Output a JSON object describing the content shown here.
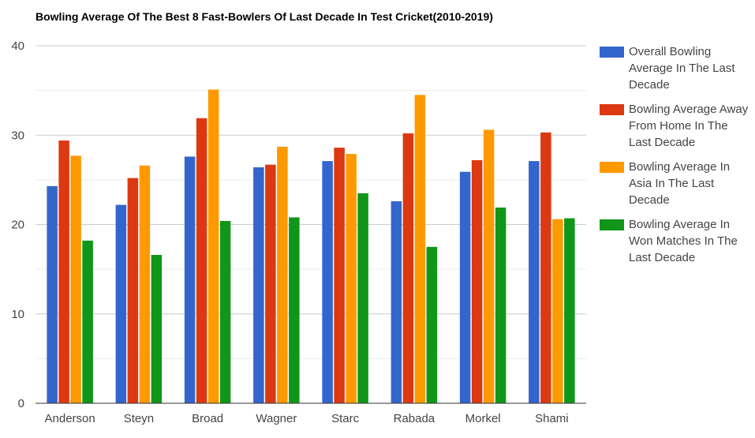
{
  "chart_data": {
    "type": "bar",
    "title": "Bowling Average Of The Best 8 Fast-Bowlers Of Last Decade In Test Cricket(2010-2019)",
    "xlabel": "",
    "ylabel": "",
    "ylim": [
      0,
      40
    ],
    "yticks": [
      0,
      10,
      20,
      30,
      40
    ],
    "grid": true,
    "legend_position": "right",
    "categories": [
      "Anderson",
      "Steyn",
      "Broad",
      "Wagner",
      "Starc",
      "Rabada",
      "Morkel",
      "Shami"
    ],
    "series": [
      {
        "name": "Overall Bowling Average In The Last Decade",
        "color": "#3366cc",
        "values": [
          24.3,
          22.2,
          27.6,
          26.4,
          27.1,
          22.6,
          25.9,
          27.1
        ]
      },
      {
        "name": "Bowling Average Away From Home In The Last Decade",
        "color": "#dc3912",
        "values": [
          29.4,
          25.2,
          31.9,
          26.7,
          28.6,
          30.2,
          27.2,
          30.3
        ]
      },
      {
        "name": "Bowling Average In Asia In The Last Decade",
        "color": "#ff9900",
        "values": [
          27.7,
          26.6,
          35.1,
          28.7,
          27.9,
          34.5,
          30.6,
          20.6
        ]
      },
      {
        "name": "Bowling Average In Won Matches In The Last Decade",
        "color": "#109618",
        "values": [
          18.2,
          16.6,
          20.4,
          20.8,
          23.5,
          17.5,
          21.9,
          20.7
        ]
      }
    ]
  }
}
